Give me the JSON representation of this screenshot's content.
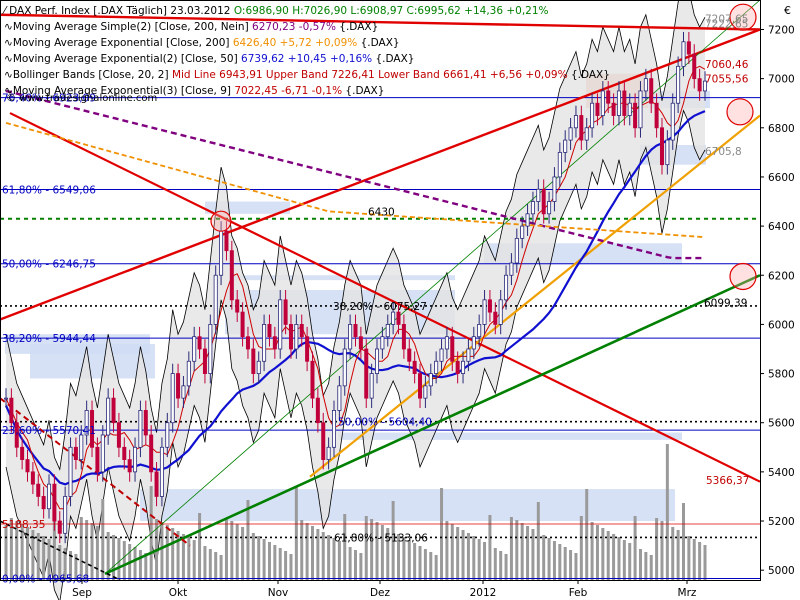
{
  "colors": {
    "candle_up": "#2a2a7a",
    "candle_down": "#c0003a",
    "volume": "#9a9a9a",
    "blue_ma": "#1010d0",
    "red_line": "#e00000",
    "green_line": "#008000",
    "orange_line": "#f09000",
    "purple_ma": "#800080"
  },
  "header": {
    "title": "DAX Perf. Index [.DAX Täglich]",
    "date": "23.03.2012",
    "ohlc": "O:6986,90 H:7026,90 L:6908,97 C:6995,62 +14,36 +0,21%"
  },
  "indicators": [
    {
      "name": "Moving Average Simple(2) [Close, 200, Nein]",
      "value": "6270,23 -0,57%",
      "suffix": "{.DAX}",
      "color": "#800080"
    },
    {
      "name": "Moving Average Exponential [Close, 200]",
      "value": "6426,40 +5,72 +0,09%",
      "suffix": "{.DAX}",
      "color": "#f09000"
    },
    {
      "name": "Moving Average Exponential(2) [Close, 50]",
      "value": "6739,62 +10,45 +0,16%",
      "suffix": "{.DAX}",
      "color": "#1010d0"
    },
    {
      "name": "Bollinger Bands [Close, 20, 2]",
      "value": "Mid Line 6943,91 Upper Band 7226,41 Lower Band 6661,41 +6,56 +0,09%",
      "suffix": "{.DAX}",
      "color": "#c00000"
    },
    {
      "name": "Moving Average Exponential(3) [Close, 9]",
      "value": "7022,45 -6,71 -0,1%",
      "suffix": "{.DAX}",
      "color": "#c00000"
    }
  ],
  "watermark": "© www.tradesignalonline.com",
  "currency": "€",
  "annotations": {
    "fib_7640": "76,40% - 6923,09",
    "fib_6180": "61,80% - 6549,06",
    "fib_5000": "50,00% - 6246,75",
    "fib_3820": "38,20% - 5944,44",
    "fib_2360": "23,60% - 5570,41",
    "lvl_5188": "5188,35",
    "fib_0": "0,00% - 4965,68",
    "mid_3820": "38,20% - 6075,27",
    "mid_5000": "50,00% - 5604,40",
    "mid_6180": "61,80% - 5133,06",
    "lvl_6430": "6430",
    "lvl_7060": "7060,46",
    "lvl_7055": "7055,56",
    "lvl_7222": "7222,65",
    "lvl_7207": "7207,65",
    "lvl_6705": "6705,8",
    "lvl_6099": "6099,39",
    "lvl_5366": "5366,37"
  },
  "chart_data": {
    "type": "candlestick",
    "title": "DAX Perf. Index [.DAX Täglich]",
    "x_ticks": [
      "Sep",
      "Okt",
      "Nov",
      "Dez",
      "2012",
      "Feb",
      "Mrz"
    ],
    "y_ticks": [
      5000,
      5200,
      5400,
      5600,
      5800,
      6000,
      6200,
      6400,
      6600,
      6800,
      7000,
      7200
    ],
    "ylim": [
      4960,
      7320
    ],
    "grid": false,
    "last_close": 6995.62,
    "closes": [
      5700,
      5600,
      5500,
      5450,
      5400,
      5350,
      5300,
      5250,
      5350,
      5200,
      5150,
      5300,
      5500,
      5450,
      5550,
      5650,
      5500,
      5400,
      5550,
      5700,
      5600,
      5500,
      5450,
      5400,
      5500,
      5650,
      5550,
      5400,
      5300,
      5500,
      5600,
      5800,
      5700,
      5750,
      5850,
      5950,
      5900,
      5800,
      6000,
      6200,
      6380,
      6300,
      6100,
      6050,
      5950,
      5900,
      5800,
      5850,
      6000,
      5950,
      5900,
      6100,
      6000,
      5900,
      6000,
      5950,
      5850,
      5700,
      5600,
      5450,
      5500,
      5650,
      5750,
      5900,
      6000,
      5950,
      5900,
      5700,
      5800,
      5900,
      5950,
      6000,
      6050,
      6000,
      5900,
      5850,
      5800,
      5700,
      5750,
      5800,
      5850,
      5900,
      5950,
      5850,
      5800,
      5850,
      5900,
      5950,
      6000,
      6100,
      6050,
      6000,
      6100,
      6200,
      6250,
      6350,
      6400,
      6450,
      6500,
      6550,
      6450,
      6500,
      6600,
      6700,
      6750,
      6800,
      6850,
      6750,
      6800,
      6900,
      6850,
      6950,
      6900,
      6850,
      6950,
      6850,
      6900,
      6800,
      6950,
      7000,
      6900,
      6800,
      6650,
      6750,
      6900,
      7050,
      7150,
      7100,
      7000,
      6950,
      6990
    ]
  }
}
